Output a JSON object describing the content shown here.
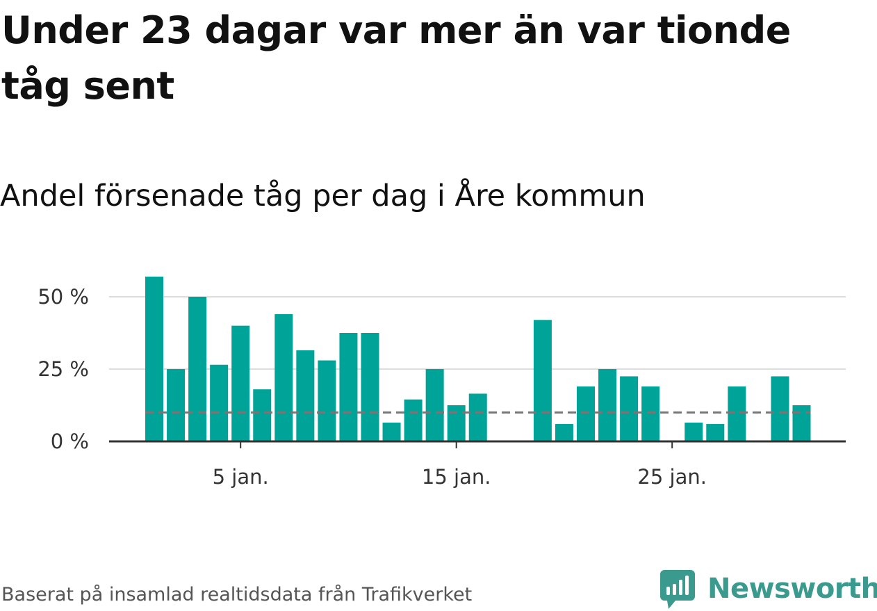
{
  "title": "Under 23 dagar var mer än var tionde tåg sent",
  "subtitle": "Andel försenade tåg per dag i Åre kommun",
  "source": "Baserat på insamlad realtidsdata från Trafikverket",
  "logo": {
    "text": "Newsworthy",
    "icon": "newsworthy-logo-icon"
  },
  "colors": {
    "bar": "#00a398",
    "reference": "#777777",
    "grid": "#dddddd",
    "axis": "#333333"
  },
  "chart_data": {
    "type": "bar",
    "x_unit": "dag (januari)",
    "x": [
      1,
      2,
      3,
      4,
      5,
      6,
      7,
      8,
      9,
      10,
      11,
      12,
      13,
      14,
      15,
      16,
      17,
      18,
      19,
      20,
      21,
      22,
      23,
      24,
      25,
      26,
      27,
      28,
      29,
      30,
      31
    ],
    "values": [
      57,
      25,
      50,
      26.5,
      40,
      18,
      44,
      31.5,
      28,
      37.5,
      37.5,
      6.5,
      14.5,
      25,
      12.5,
      16.5,
      0,
      0,
      42,
      6,
      19,
      25,
      22.5,
      19,
      0,
      6.5,
      6,
      19,
      0,
      22.5,
      12.5
    ],
    "reference_line": 10,
    "ylim": [
      0,
      60
    ],
    "yticks": [
      0,
      25,
      50
    ],
    "ytick_labels": [
      "0 %",
      "25 %",
      "50 %"
    ],
    "xticks": [
      5,
      15,
      25
    ],
    "xtick_labels": [
      "5 jan.",
      "15 jan.",
      "25 jan."
    ],
    "grid": true,
    "legend": "none"
  }
}
